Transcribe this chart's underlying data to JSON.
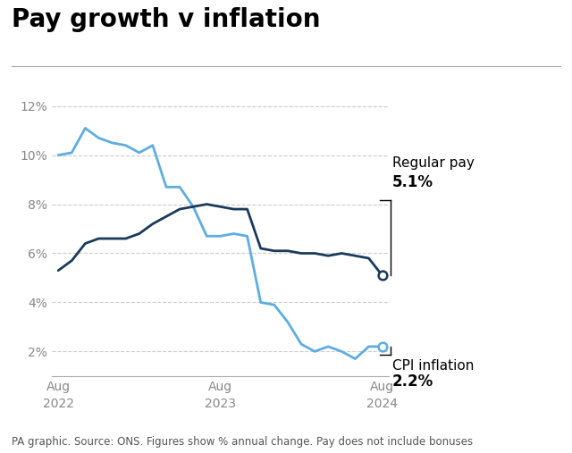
{
  "title": "Pay growth v inflation",
  "subtitle": "PA graphic. Source: ONS. Figures show % annual change. Pay does not include bonuses",
  "ylim": [
    1.0,
    13.0
  ],
  "yticks": [
    2,
    4,
    6,
    8,
    10,
    12
  ],
  "ytick_labels": [
    "2%",
    "4%",
    "6%",
    "8%",
    "10%",
    "12%"
  ],
  "bg_color": "#ffffff",
  "regular_pay_color": "#1a3a5c",
  "cpi_color": "#5dade2",
  "regular_pay_label": "Regular pay",
  "regular_pay_value": "5.1%",
  "cpi_label": "CPI inflation",
  "cpi_value": "2.2%",
  "regular_pay": {
    "x": [
      0,
      1,
      2,
      3,
      4,
      5,
      6,
      7,
      8,
      9,
      10,
      11,
      12,
      13,
      14,
      15,
      16,
      17,
      18,
      19,
      20,
      21,
      22,
      23,
      24
    ],
    "y": [
      5.3,
      5.7,
      6.4,
      6.6,
      6.6,
      6.6,
      6.8,
      7.2,
      7.5,
      7.8,
      7.9,
      8.0,
      7.9,
      7.8,
      7.8,
      6.2,
      6.1,
      6.1,
      6.0,
      6.0,
      5.9,
      6.0,
      5.9,
      5.8,
      5.1
    ]
  },
  "cpi": {
    "x": [
      0,
      1,
      2,
      3,
      4,
      5,
      6,
      7,
      8,
      9,
      10,
      11,
      12,
      13,
      14,
      15,
      16,
      17,
      18,
      19,
      20,
      21,
      22,
      23,
      24
    ],
    "y": [
      10.0,
      10.1,
      11.1,
      10.7,
      10.5,
      10.4,
      10.1,
      10.4,
      8.7,
      8.7,
      7.9,
      6.7,
      6.7,
      6.8,
      6.7,
      4.0,
      3.9,
      3.2,
      2.3,
      2.0,
      2.2,
      2.0,
      1.7,
      2.2,
      2.2
    ]
  },
  "xtick_positions": [
    0,
    12,
    24
  ],
  "xtick_labels": [
    "Aug\n2022",
    "Aug\n2023",
    "Aug\n2024"
  ],
  "title_fontsize": 20,
  "axis_fontsize": 10,
  "label_fontsize": 11,
  "footer_fontsize": 8.5,
  "grid_color": "#cccccc",
  "spine_color": "#aaaaaa",
  "text_color": "#333333",
  "tick_color": "#888888"
}
